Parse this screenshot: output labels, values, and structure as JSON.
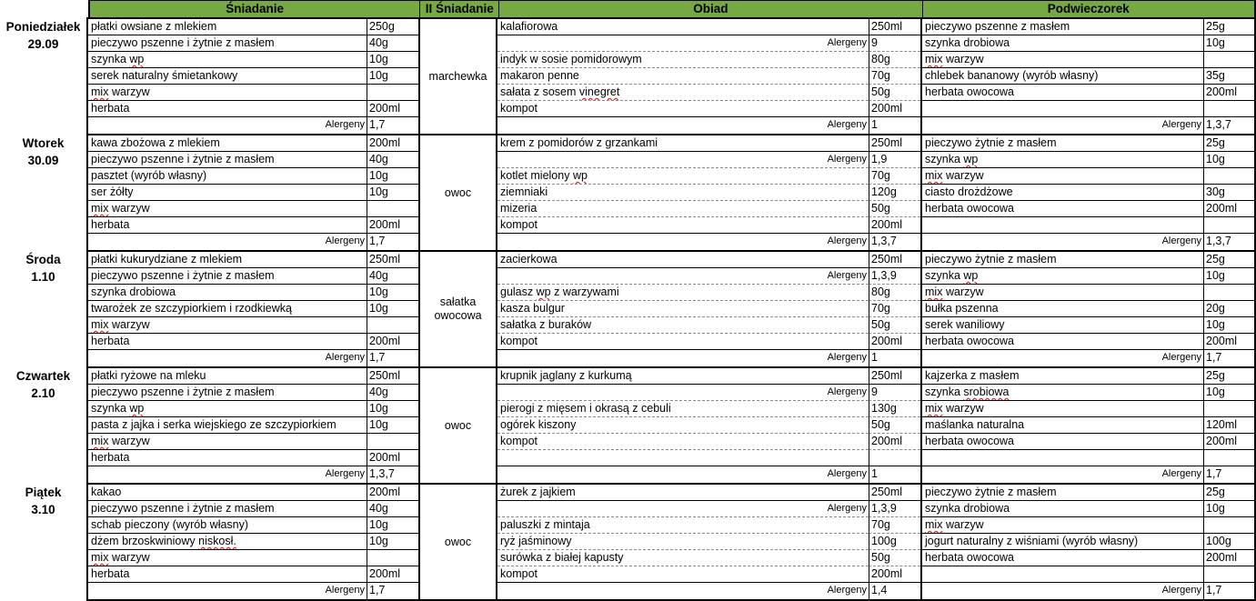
{
  "palette": {
    "header_green": "#76a942",
    "border": "#000000",
    "dashed_line": "#8a8a8a",
    "spellcheck_red": "#e00000"
  },
  "header": {
    "breakfast": "Śniadanie",
    "second_breakfast": "II Śniadanie",
    "lunch": "Obiad",
    "snack": "Podwieczorek"
  },
  "allergen_label": "Alergeny",
  "spellcheck_words": [
    "wp",
    "mix",
    "vinegret",
    "srobiowa",
    "niskosł."
  ],
  "days": [
    {
      "day": "Poniedziałek",
      "date": "29.09",
      "second_breakfast": "marchewka",
      "breakfast": [
        {
          "kind": "item",
          "name": "płatki owsiane z mlekiem",
          "qty": "250g"
        },
        {
          "kind": "item",
          "name": "pieczywo pszenne i żytnie z masłem",
          "qty": "40g"
        },
        {
          "kind": "item",
          "name": "szynka wp",
          "qty": "10g"
        },
        {
          "kind": "item",
          "name": "serek naturalny śmietankowy",
          "qty": "10g"
        },
        {
          "kind": "item",
          "name": "mix warzyw",
          "qty": ""
        },
        {
          "kind": "item",
          "name": "herbata",
          "qty": "200ml"
        },
        {
          "kind": "allergens",
          "qty": "1,7"
        }
      ],
      "lunch": [
        {
          "kind": "item",
          "name": "kalafiorowa",
          "qty": "250ml"
        },
        {
          "kind": "allergens",
          "qty": "9"
        },
        {
          "kind": "item",
          "name": "indyk w sosie pomidorowym",
          "qty": "80g"
        },
        {
          "kind": "item",
          "name": "makaron penne",
          "qty": "70g"
        },
        {
          "kind": "item",
          "name": "sałata z sosem vinegret",
          "qty": "50g"
        },
        {
          "kind": "item",
          "name": "kompot",
          "qty": "200ml"
        },
        {
          "kind": "allergens",
          "qty": "1"
        }
      ],
      "snack": [
        {
          "kind": "item",
          "name": "pieczywo pszenne z masłem",
          "qty": "25g"
        },
        {
          "kind": "item",
          "name": "szynka drobiowa",
          "qty": "10g"
        },
        {
          "kind": "item",
          "name": "mix warzyw",
          "qty": ""
        },
        {
          "kind": "item",
          "name": "chlebek bananowy (wyrób własny)",
          "qty": "35g"
        },
        {
          "kind": "item",
          "name": "herbata owocowa",
          "qty": "200ml"
        },
        {
          "kind": "empty"
        },
        {
          "kind": "allergens",
          "qty": "1,3,7"
        }
      ]
    },
    {
      "day": "Wtorek",
      "date": "30.09",
      "second_breakfast": "owoc",
      "breakfast": [
        {
          "kind": "item",
          "name": "kawa zbożowa z mlekiem",
          "qty": "200ml"
        },
        {
          "kind": "item",
          "name": "pieczywo pszenne i żytnie z masłem",
          "qty": "40g"
        },
        {
          "kind": "item",
          "name": "pasztet (wyrób własny)",
          "qty": "10g"
        },
        {
          "kind": "item",
          "name": "ser żółty",
          "qty": "10g"
        },
        {
          "kind": "item",
          "name": "mix warzyw",
          "qty": ""
        },
        {
          "kind": "item",
          "name": "herbata",
          "qty": "200ml"
        },
        {
          "kind": "allergens",
          "qty": "1,7"
        }
      ],
      "lunch": [
        {
          "kind": "item",
          "name": "krem z pomidorów z grzankami",
          "qty": "250ml"
        },
        {
          "kind": "allergens",
          "qty": "1,9"
        },
        {
          "kind": "item",
          "name": "kotlet mielony wp",
          "qty": "70g"
        },
        {
          "kind": "item",
          "name": "ziemniaki",
          "qty": "120g"
        },
        {
          "kind": "item",
          "name": "mizeria",
          "qty": "50g"
        },
        {
          "kind": "item",
          "name": "kompot",
          "qty": "200ml"
        },
        {
          "kind": "allergens",
          "qty": "1,3,7"
        }
      ],
      "snack": [
        {
          "kind": "item",
          "name": "pieczywo żytnie z masłem",
          "qty": "25g"
        },
        {
          "kind": "item",
          "name": "szynka wp",
          "qty": "10g"
        },
        {
          "kind": "item",
          "name": "mix warzyw",
          "qty": ""
        },
        {
          "kind": "item",
          "name": "ciasto drożdżowe",
          "qty": "30g"
        },
        {
          "kind": "item",
          "name": "herbata owocowa",
          "qty": "200ml"
        },
        {
          "kind": "empty"
        },
        {
          "kind": "allergens",
          "qty": "1,3,7"
        }
      ]
    },
    {
      "day": "Środa",
      "date": "1.10",
      "second_breakfast": "sałatka owocowa",
      "breakfast": [
        {
          "kind": "item",
          "name": "płatki kukurydziane z mlekiem",
          "qty": "250ml"
        },
        {
          "kind": "item",
          "name": "pieczywo pszenne i żytnie z masłem",
          "qty": "40g"
        },
        {
          "kind": "item",
          "name": "szynka drobiowa",
          "qty": "10g"
        },
        {
          "kind": "item",
          "name": "twarożek ze szczypiorkiem i rzodkiewką",
          "qty": "10g"
        },
        {
          "kind": "item",
          "name": "mix warzyw",
          "qty": ""
        },
        {
          "kind": "item",
          "name": "herbata",
          "qty": "200ml"
        },
        {
          "kind": "allergens",
          "qty": "1,7"
        }
      ],
      "lunch": [
        {
          "kind": "item",
          "name": "zacierkowa",
          "qty": "250ml"
        },
        {
          "kind": "allergens",
          "qty": "1,3,9"
        },
        {
          "kind": "item",
          "name": "gulasz wp z warzywami",
          "qty": "80g"
        },
        {
          "kind": "item",
          "name": "kasza bulgur",
          "qty": "70g"
        },
        {
          "kind": "item",
          "name": "sałatka z buraków",
          "qty": "50g"
        },
        {
          "kind": "item",
          "name": "kompot",
          "qty": "200ml"
        },
        {
          "kind": "allergens",
          "qty": "1"
        }
      ],
      "snack": [
        {
          "kind": "item",
          "name": "pieczywo żytnie z masłem",
          "qty": "25g"
        },
        {
          "kind": "item",
          "name": "szynka wp",
          "qty": "10g"
        },
        {
          "kind": "item",
          "name": "mix warzyw",
          "qty": ""
        },
        {
          "kind": "item",
          "name": "bułka pszenna",
          "qty": "20g"
        },
        {
          "kind": "item",
          "name": "serek waniliowy",
          "qty": "10g"
        },
        {
          "kind": "item",
          "name": "herbata owocowa",
          "qty": "200ml"
        },
        {
          "kind": "allergens",
          "qty": "1,7"
        }
      ]
    },
    {
      "day": "Czwartek",
      "date": "2.10",
      "second_breakfast": "owoc",
      "breakfast": [
        {
          "kind": "item",
          "name": "płatki ryżowe na mleku",
          "qty": "250ml"
        },
        {
          "kind": "item",
          "name": "pieczywo pszenne i żytnie z masłem",
          "qty": "40g"
        },
        {
          "kind": "item",
          "name": "szynka wp",
          "qty": "10g"
        },
        {
          "kind": "item",
          "name": "pasta z jajka i serka wiejskiego ze szczypiorkiem",
          "qty": "10g"
        },
        {
          "kind": "item",
          "name": "mix warzyw",
          "qty": ""
        },
        {
          "kind": "item",
          "name": "herbata",
          "qty": "200ml"
        },
        {
          "kind": "allergens",
          "qty": "1,3,7"
        }
      ],
      "lunch": [
        {
          "kind": "item",
          "name": "krupnik jaglany z kurkumą",
          "qty": "250ml"
        },
        {
          "kind": "allergens",
          "qty": "9"
        },
        {
          "kind": "item",
          "name": "pierogi z mięsem i okrasą z cebuli",
          "qty": "130g"
        },
        {
          "kind": "item",
          "name": "ogórek kiszony",
          "qty": "50g"
        },
        {
          "kind": "item",
          "name": "kompot",
          "qty": "200ml"
        },
        {
          "kind": "empty"
        },
        {
          "kind": "allergens",
          "qty": "1"
        }
      ],
      "snack": [
        {
          "kind": "item",
          "name": "kajzerka z masłem",
          "qty": "25g"
        },
        {
          "kind": "item",
          "name": "szynka srobiowa",
          "qty": "10g"
        },
        {
          "kind": "item",
          "name": "mix warzyw",
          "qty": ""
        },
        {
          "kind": "item",
          "name": "maślanka naturalna",
          "qty": "120ml"
        },
        {
          "kind": "item",
          "name": "herbata owocowa",
          "qty": "200ml"
        },
        {
          "kind": "empty"
        },
        {
          "kind": "allergens",
          "qty": "1,7"
        }
      ]
    },
    {
      "day": "Piątek",
      "date": "3.10",
      "second_breakfast": "owoc",
      "breakfast": [
        {
          "kind": "item",
          "name": "kakao",
          "qty": "200ml"
        },
        {
          "kind": "item",
          "name": "pieczywo pszenne i żytnie z masłem",
          "qty": "40g"
        },
        {
          "kind": "item",
          "name": "schab pieczony (wyrób własny)",
          "qty": "10g"
        },
        {
          "kind": "item",
          "name": "dżem brzoskwiniowy niskosł.",
          "qty": "10g"
        },
        {
          "kind": "item",
          "name": "mix warzyw",
          "qty": ""
        },
        {
          "kind": "item",
          "name": "herbata",
          "qty": "200ml"
        },
        {
          "kind": "allergens",
          "qty": "1,7"
        }
      ],
      "lunch": [
        {
          "kind": "item",
          "name": "żurek z jajkiem",
          "qty": "250ml"
        },
        {
          "kind": "allergens",
          "qty": "1,3,9"
        },
        {
          "kind": "item",
          "name": "paluszki z mintaja",
          "qty": "70g"
        },
        {
          "kind": "item",
          "name": "ryż jaśminowy",
          "qty": "100g"
        },
        {
          "kind": "item",
          "name": "surówka z białej kapusty",
          "qty": "50g"
        },
        {
          "kind": "item",
          "name": "kompot",
          "qty": "200ml"
        },
        {
          "kind": "allergens",
          "qty": "1,4"
        }
      ],
      "snack": [
        {
          "kind": "item",
          "name": "pieczywo żytnie z masłem",
          "qty": "25g"
        },
        {
          "kind": "item",
          "name": "szynka drobiowa",
          "qty": "10g"
        },
        {
          "kind": "item",
          "name": "mix warzyw",
          "qty": ""
        },
        {
          "kind": "item",
          "name": "jogurt naturalny z wiśniami (wyrób własny)",
          "qty": "100g"
        },
        {
          "kind": "item",
          "name": "herbata owocowa",
          "qty": "200ml"
        },
        {
          "kind": "empty"
        },
        {
          "kind": "allergens",
          "qty": "1,7"
        }
      ]
    }
  ]
}
